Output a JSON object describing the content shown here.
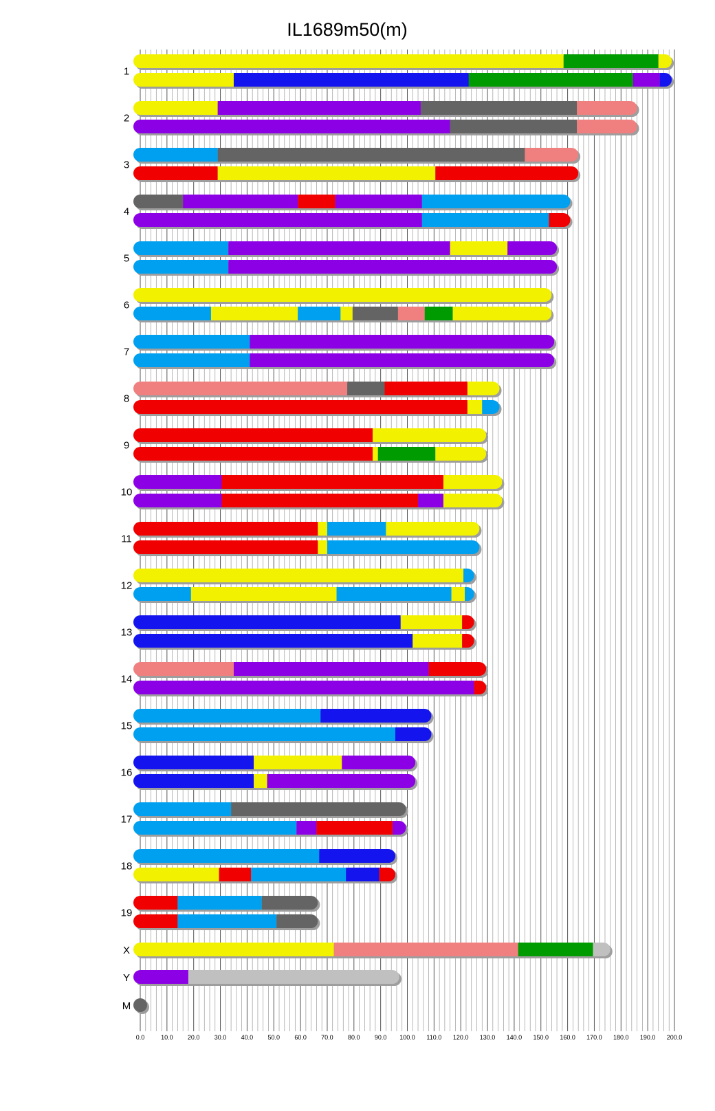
{
  "chart_data": {
    "type": "bar",
    "title": "IL1689m50(m)",
    "xlabel": "",
    "ylabel": "",
    "xlim": [
      0,
      200
    ],
    "x_ticks": [
      "0.0",
      "10.0",
      "20.0",
      "30.0",
      "40.0",
      "50.0",
      "60.0",
      "70.0",
      "80.0",
      "90.0",
      "100.0",
      "110.0",
      "120.0",
      "130.0",
      "140.0",
      "150.0",
      "160.0",
      "170.0",
      "180.0",
      "190.0",
      "200.0"
    ],
    "grid": true,
    "colors": {
      "yellow": "#f2f200",
      "green": "#009b00",
      "blue": "#1414ee",
      "purple": "#8c00e6",
      "gray": "#646464",
      "pink": "#f08080",
      "cyan": "#00a0f0",
      "red": "#f00000",
      "lightgray": "#c0c0c0"
    },
    "chromosomes": [
      {
        "label": "1",
        "haplotypes": [
          [
            [
              0,
              158.5,
              "yellow"
            ],
            [
              158.5,
              194,
              "green"
            ],
            [
              194,
              199,
              "yellow"
            ]
          ],
          [
            [
              0,
              35,
              "yellow"
            ],
            [
              35,
              123,
              "blue"
            ],
            [
              123,
              184.5,
              "green"
            ],
            [
              184.5,
              194.5,
              "purple"
            ],
            [
              194.5,
              199,
              "blue"
            ]
          ]
        ]
      },
      {
        "label": "2",
        "haplotypes": [
          [
            [
              0,
              29,
              "yellow"
            ],
            [
              29,
              105,
              "purple"
            ],
            [
              105,
              163.5,
              "gray"
            ],
            [
              163.5,
              186,
              "pink"
            ]
          ],
          [
            [
              0,
              116,
              "purple"
            ],
            [
              116,
              163.5,
              "gray"
            ],
            [
              163.5,
              186,
              "pink"
            ]
          ]
        ]
      },
      {
        "label": "3",
        "haplotypes": [
          [
            [
              0,
              29,
              "cyan"
            ],
            [
              29,
              144,
              "gray"
            ],
            [
              144,
              164,
              "pink"
            ]
          ],
          [
            [
              0,
              29,
              "red"
            ],
            [
              29,
              110.5,
              "yellow"
            ],
            [
              110.5,
              164,
              "red"
            ]
          ]
        ]
      },
      {
        "label": "4",
        "haplotypes": [
          [
            [
              0,
              16,
              "gray"
            ],
            [
              16,
              59,
              "purple"
            ],
            [
              59,
              73,
              "red"
            ],
            [
              73,
              105.5,
              "purple"
            ],
            [
              105.5,
              161,
              "cyan"
            ]
          ],
          [
            [
              0,
              105.5,
              "purple"
            ],
            [
              105.5,
              153,
              "cyan"
            ],
            [
              153,
              161,
              "red"
            ]
          ]
        ]
      },
      {
        "label": "5",
        "haplotypes": [
          [
            [
              0,
              33,
              "cyan"
            ],
            [
              33,
              116,
              "purple"
            ],
            [
              116,
              137.5,
              "yellow"
            ],
            [
              137.5,
              156,
              "purple"
            ]
          ],
          [
            [
              0,
              33,
              "cyan"
            ],
            [
              33,
              156,
              "purple"
            ]
          ]
        ]
      },
      {
        "label": "6",
        "haplotypes": [
          [
            [
              0,
              154,
              "yellow"
            ]
          ],
          [
            [
              0,
              26.5,
              "cyan"
            ],
            [
              26.5,
              59,
              "yellow"
            ],
            [
              59,
              75,
              "cyan"
            ],
            [
              75,
              79.5,
              "yellow"
            ],
            [
              79.5,
              96.5,
              "gray"
            ],
            [
              96.5,
              106.5,
              "pink"
            ],
            [
              106.5,
              117,
              "green"
            ],
            [
              117,
              154,
              "yellow"
            ]
          ]
        ]
      },
      {
        "label": "7",
        "haplotypes": [
          [
            [
              0,
              41,
              "cyan"
            ],
            [
              41,
              155,
              "purple"
            ]
          ],
          [
            [
              0,
              41,
              "cyan"
            ],
            [
              41,
              155,
              "purple"
            ]
          ]
        ]
      },
      {
        "label": "8",
        "haplotypes": [
          [
            [
              0,
              77.5,
              "pink"
            ],
            [
              77.5,
              91.5,
              "gray"
            ],
            [
              91.5,
              122.5,
              "red"
            ],
            [
              122.5,
              134.5,
              "yellow"
            ]
          ],
          [
            [
              0,
              122.5,
              "red"
            ],
            [
              122.5,
              128,
              "yellow"
            ],
            [
              128,
              134.5,
              "cyan"
            ]
          ]
        ]
      },
      {
        "label": "9",
        "haplotypes": [
          [
            [
              0,
              87,
              "red"
            ],
            [
              87,
              129.5,
              "yellow"
            ]
          ],
          [
            [
              0,
              87,
              "red"
            ],
            [
              87,
              89,
              "yellow"
            ],
            [
              89,
              110.5,
              "green"
            ],
            [
              110.5,
              129.5,
              "yellow"
            ]
          ]
        ]
      },
      {
        "label": "10",
        "haplotypes": [
          [
            [
              0,
              30.5,
              "purple"
            ],
            [
              30.5,
              113.5,
              "red"
            ],
            [
              113.5,
              135.5,
              "yellow"
            ]
          ],
          [
            [
              0,
              30.5,
              "purple"
            ],
            [
              30.5,
              104,
              "red"
            ],
            [
              104,
              113.5,
              "purple"
            ],
            [
              113.5,
              135.5,
              "yellow"
            ]
          ]
        ]
      },
      {
        "label": "11",
        "haplotypes": [
          [
            [
              0,
              66.5,
              "red"
            ],
            [
              66.5,
              70,
              "yellow"
            ],
            [
              70,
              92,
              "cyan"
            ],
            [
              92,
              127,
              "yellow"
            ]
          ],
          [
            [
              0,
              66.5,
              "red"
            ],
            [
              66.5,
              70,
              "yellow"
            ],
            [
              70,
              127,
              "cyan"
            ]
          ]
        ]
      },
      {
        "label": "12",
        "haplotypes": [
          [
            [
              0,
              121,
              "yellow"
            ],
            [
              121,
              125,
              "cyan"
            ]
          ],
          [
            [
              0,
              19,
              "cyan"
            ],
            [
              19,
              73.5,
              "yellow"
            ],
            [
              73.5,
              116.5,
              "cyan"
            ],
            [
              116.5,
              121.5,
              "yellow"
            ],
            [
              121.5,
              125,
              "cyan"
            ]
          ]
        ]
      },
      {
        "label": "13",
        "haplotypes": [
          [
            [
              0,
              97.5,
              "blue"
            ],
            [
              97.5,
              120.5,
              "yellow"
            ],
            [
              120.5,
              125,
              "red"
            ]
          ],
          [
            [
              0,
              102,
              "blue"
            ],
            [
              102,
              120.5,
              "yellow"
            ],
            [
              120.5,
              125,
              "red"
            ]
          ]
        ]
      },
      {
        "label": "14",
        "haplotypes": [
          [
            [
              0,
              35,
              "pink"
            ],
            [
              35,
              108,
              "purple"
            ],
            [
              108,
              129.5,
              "red"
            ]
          ],
          [
            [
              0,
              125,
              "purple"
            ],
            [
              125,
              129.5,
              "red"
            ]
          ]
        ]
      },
      {
        "label": "15",
        "haplotypes": [
          [
            [
              0,
              67.5,
              "cyan"
            ],
            [
              67.5,
              109,
              "blue"
            ]
          ],
          [
            [
              0,
              95.5,
              "cyan"
            ],
            [
              95.5,
              109,
              "blue"
            ]
          ]
        ]
      },
      {
        "label": "16",
        "haplotypes": [
          [
            [
              0,
              42.5,
              "blue"
            ],
            [
              42.5,
              75.5,
              "yellow"
            ],
            [
              75.5,
              103,
              "purple"
            ]
          ],
          [
            [
              0,
              42.5,
              "blue"
            ],
            [
              42.5,
              47.5,
              "yellow"
            ],
            [
              47.5,
              103,
              "purple"
            ]
          ]
        ]
      },
      {
        "label": "17",
        "haplotypes": [
          [
            [
              0,
              34,
              "cyan"
            ],
            [
              34,
              99.5,
              "gray"
            ]
          ],
          [
            [
              0,
              58.5,
              "cyan"
            ],
            [
              58.5,
              66,
              "purple"
            ],
            [
              66,
              94.5,
              "red"
            ],
            [
              94.5,
              99.5,
              "purple"
            ]
          ]
        ]
      },
      {
        "label": "18",
        "haplotypes": [
          [
            [
              0,
              67,
              "cyan"
            ],
            [
              67,
              95.5,
              "blue"
            ]
          ],
          [
            [
              0,
              29.5,
              "yellow"
            ],
            [
              29.5,
              41.5,
              "red"
            ],
            [
              41.5,
              77,
              "cyan"
            ],
            [
              77,
              89.5,
              "blue"
            ],
            [
              89.5,
              95.5,
              "red"
            ]
          ]
        ]
      },
      {
        "label": "19",
        "haplotypes": [
          [
            [
              0,
              14,
              "red"
            ],
            [
              14,
              45.5,
              "cyan"
            ],
            [
              45.5,
              66.5,
              "gray"
            ]
          ],
          [
            [
              0,
              14,
              "red"
            ],
            [
              14,
              51,
              "cyan"
            ],
            [
              51,
              66.5,
              "gray"
            ]
          ]
        ]
      },
      {
        "label": "X",
        "haplotypes": [
          [
            [
              0,
              72.5,
              "yellow"
            ],
            [
              72.5,
              141.5,
              "pink"
            ],
            [
              141.5,
              169.5,
              "green"
            ],
            [
              169.5,
              176,
              "lightgray"
            ]
          ]
        ]
      },
      {
        "label": "Y",
        "haplotypes": [
          [
            [
              0,
              18,
              "purple"
            ],
            [
              18,
              97,
              "lightgray"
            ]
          ]
        ]
      },
      {
        "label": "M",
        "haplotypes": [
          [
            [
              0,
              2.5,
              "gray"
            ]
          ]
        ]
      }
    ]
  }
}
